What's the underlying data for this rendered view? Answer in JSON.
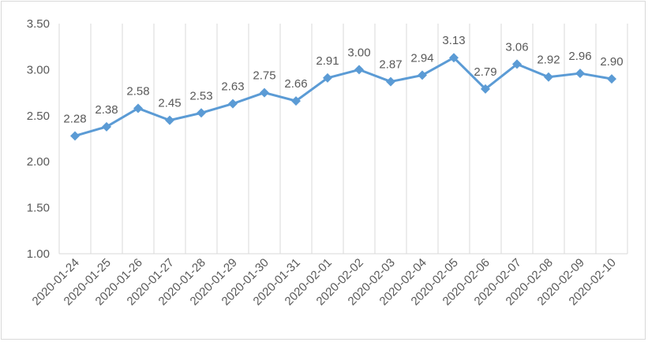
{
  "chart_data": {
    "type": "line",
    "title": "",
    "xlabel": "",
    "ylabel": "",
    "categories": [
      "2020-01-24",
      "2020-01-25",
      "2020-01-26",
      "2020-01-27",
      "2020-01-28",
      "2020-01-29",
      "2020-01-30",
      "2020-01-31",
      "2020-02-01",
      "2020-02-02",
      "2020-02-03",
      "2020-02-04",
      "2020-02-05",
      "2020-02-06",
      "2020-02-07",
      "2020-02-08",
      "2020-02-09",
      "2020-02-10"
    ],
    "series": [
      {
        "values": [
          2.28,
          2.38,
          2.58,
          2.45,
          2.53,
          2.63,
          2.75,
          2.66,
          2.91,
          3.0,
          2.87,
          2.94,
          3.13,
          2.79,
          3.06,
          2.92,
          2.96,
          2.9
        ],
        "data_labels": [
          "2.28",
          "2.38",
          "2.58",
          "2.45",
          "2.53",
          "2.63",
          "2.75",
          "2.66",
          "2.91",
          "3.00",
          "2.87",
          "2.94",
          "3.13",
          "2.79",
          "3.06",
          "2.92",
          "2.96",
          "2.90"
        ]
      }
    ],
    "ylim": [
      1.0,
      3.5
    ],
    "yticks": [
      "1.00",
      "1.50",
      "2.00",
      "2.50",
      "3.00",
      "3.50"
    ],
    "grid": "vertical",
    "legend": "none",
    "colors": {
      "line": "#5b9bd5",
      "grid": "#d9d9d9",
      "text": "#595959"
    }
  }
}
